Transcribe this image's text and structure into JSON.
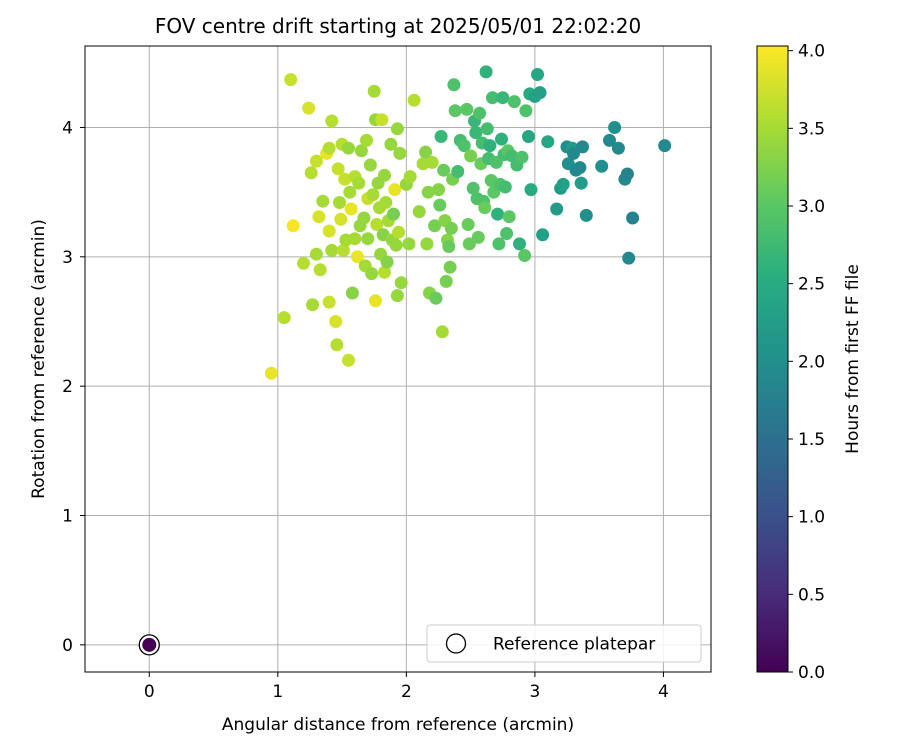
{
  "chart_data": {
    "type": "scatter",
    "title": "FOV centre drift starting at 2025/05/01 22:02:20",
    "xlabel": "Angular distance from reference (arcmin)",
    "ylabel": "Rotation from reference (arcmin)",
    "xlim": [
      -0.5,
      4.37
    ],
    "ylim": [
      -0.21,
      4.63
    ],
    "xticks": [
      0,
      1,
      2,
      3,
      4
    ],
    "yticks": [
      0,
      1,
      2,
      3,
      4
    ],
    "grid": true,
    "colormap": "viridis",
    "colorbar": {
      "label": "Hours from first FF file",
      "range": [
        0.0,
        4.03
      ],
      "ticks": [
        "0.0",
        "0.5",
        "1.0",
        "1.5",
        "2.0",
        "2.5",
        "3.0",
        "3.5",
        "4.0"
      ]
    },
    "legend": {
      "label": "Reference platepar",
      "position": "lower-right"
    },
    "reference_point": {
      "x": 0,
      "y": 0,
      "c": 0.0
    },
    "points": [
      [
        0.95,
        2.1,
        3.9
      ],
      [
        1.05,
        2.53,
        3.6
      ],
      [
        1.1,
        4.37,
        3.7
      ],
      [
        1.12,
        3.24,
        4.0
      ],
      [
        1.2,
        2.95,
        3.6
      ],
      [
        1.24,
        4.15,
        3.8
      ],
      [
        1.26,
        3.65,
        3.6
      ],
      [
        1.27,
        2.63,
        3.5
      ],
      [
        1.3,
        3.74,
        3.7
      ],
      [
        1.3,
        3.02,
        3.5
      ],
      [
        1.32,
        3.31,
        3.8
      ],
      [
        1.33,
        2.9,
        3.6
      ],
      [
        1.35,
        3.43,
        3.5
      ],
      [
        1.38,
        3.8,
        3.9
      ],
      [
        1.4,
        3.84,
        3.6
      ],
      [
        1.4,
        3.2,
        3.8
      ],
      [
        1.4,
        2.65,
        3.7
      ],
      [
        1.42,
        4.05,
        3.6
      ],
      [
        1.42,
        3.05,
        3.5
      ],
      [
        1.45,
        2.5,
        3.8
      ],
      [
        1.46,
        2.32,
        3.6
      ],
      [
        1.47,
        3.68,
        3.7
      ],
      [
        1.48,
        3.42,
        3.5
      ],
      [
        1.49,
        3.29,
        3.8
      ],
      [
        1.5,
        3.87,
        3.6
      ],
      [
        1.51,
        3.05,
        3.6
      ],
      [
        1.52,
        3.6,
        3.7
      ],
      [
        1.53,
        3.13,
        3.5
      ],
      [
        1.55,
        3.84,
        3.4
      ],
      [
        1.55,
        2.2,
        3.7
      ],
      [
        1.56,
        3.5,
        3.5
      ],
      [
        1.57,
        3.37,
        3.9
      ],
      [
        1.58,
        2.72,
        3.3
      ],
      [
        1.6,
        3.14,
        3.5
      ],
      [
        1.6,
        3.62,
        3.6
      ],
      [
        1.62,
        3.0,
        3.9
      ],
      [
        1.63,
        3.57,
        3.5
      ],
      [
        1.64,
        3.24,
        3.4
      ],
      [
        1.65,
        3.82,
        3.4
      ],
      [
        1.67,
        3.3,
        3.4
      ],
      [
        1.68,
        2.93,
        3.5
      ],
      [
        1.69,
        3.9,
        3.5
      ],
      [
        1.7,
        3.45,
        3.7
      ],
      [
        1.7,
        3.14,
        3.4
      ],
      [
        1.72,
        3.71,
        3.4
      ],
      [
        1.73,
        2.87,
        3.4
      ],
      [
        1.74,
        3.48,
        3.5
      ],
      [
        1.75,
        4.28,
        3.5
      ],
      [
        1.76,
        4.06,
        3.4
      ],
      [
        1.76,
        2.66,
        3.9
      ],
      [
        1.77,
        3.25,
        3.6
      ],
      [
        1.78,
        3.57,
        3.4
      ],
      [
        1.79,
        3.38,
        3.5
      ],
      [
        1.8,
        3.02,
        3.4
      ],
      [
        1.81,
        4.06,
        3.7
      ],
      [
        1.82,
        3.17,
        3.3
      ],
      [
        1.83,
        3.63,
        3.4
      ],
      [
        1.83,
        2.88,
        3.6
      ],
      [
        1.84,
        3.42,
        3.5
      ],
      [
        1.85,
        2.96,
        3.3
      ],
      [
        1.86,
        3.28,
        3.5
      ],
      [
        1.88,
        3.87,
        3.4
      ],
      [
        1.89,
        3.13,
        3.4
      ],
      [
        1.9,
        3.33,
        3.2
      ],
      [
        1.91,
        3.52,
        3.9
      ],
      [
        1.92,
        3.09,
        3.4
      ],
      [
        1.93,
        2.7,
        3.4
      ],
      [
        1.93,
        3.99,
        3.4
      ],
      [
        1.94,
        3.19,
        3.6
      ],
      [
        1.95,
        3.8,
        3.4
      ],
      [
        1.96,
        2.8,
        3.4
      ],
      [
        2.0,
        3.56,
        3.4
      ],
      [
        2.02,
        3.1,
        3.4
      ],
      [
        2.03,
        3.62,
        3.5
      ],
      [
        2.06,
        4.21,
        3.6
      ],
      [
        2.1,
        3.35,
        3.4
      ],
      [
        2.13,
        3.72,
        3.5
      ],
      [
        2.15,
        3.81,
        3.3
      ],
      [
        2.16,
        3.1,
        3.4
      ],
      [
        2.17,
        3.5,
        3.3
      ],
      [
        2.18,
        2.72,
        3.3
      ],
      [
        2.2,
        3.73,
        3.5
      ],
      [
        2.22,
        3.24,
        3.2
      ],
      [
        2.23,
        2.68,
        3.1
      ],
      [
        2.25,
        3.52,
        3.3
      ],
      [
        2.26,
        3.4,
        3.1
      ],
      [
        2.27,
        3.93,
        2.7
      ],
      [
        2.28,
        2.42,
        3.5
      ],
      [
        2.29,
        3.67,
        3.1
      ],
      [
        2.3,
        3.28,
        3.3
      ],
      [
        2.31,
        2.81,
        3.2
      ],
      [
        2.32,
        3.13,
        3.3
      ],
      [
        2.33,
        3.08,
        3.1
      ],
      [
        2.34,
        2.92,
        3.2
      ],
      [
        2.35,
        3.22,
        3.2
      ],
      [
        2.36,
        3.6,
        3.2
      ],
      [
        2.37,
        4.33,
        2.9
      ],
      [
        2.38,
        4.13,
        3.0
      ],
      [
        2.4,
        3.66,
        2.8
      ],
      [
        2.42,
        3.9,
        2.8
      ],
      [
        2.45,
        3.86,
        2.9
      ],
      [
        2.47,
        4.14,
        3.0
      ],
      [
        2.48,
        3.25,
        3.1
      ],
      [
        2.49,
        3.1,
        3.1
      ],
      [
        2.5,
        3.78,
        3.2
      ],
      [
        2.52,
        3.53,
        2.9
      ],
      [
        2.53,
        4.05,
        2.7
      ],
      [
        2.54,
        3.96,
        2.7
      ],
      [
        2.55,
        3.45,
        2.9
      ],
      [
        2.56,
        3.15,
        3.1
      ],
      [
        2.57,
        4.11,
        2.9
      ],
      [
        2.58,
        3.72,
        3.1
      ],
      [
        2.59,
        3.88,
        2.8
      ],
      [
        2.6,
        3.43,
        2.9
      ],
      [
        2.61,
        3.38,
        3.1
      ],
      [
        2.62,
        4.43,
        2.6
      ],
      [
        2.63,
        3.99,
        2.8
      ],
      [
        2.64,
        3.76,
        2.8
      ],
      [
        2.65,
        3.86,
        2.6
      ],
      [
        2.66,
        3.59,
        3.0
      ],
      [
        2.67,
        4.23,
        2.8
      ],
      [
        2.68,
        3.5,
        3.0
      ],
      [
        2.7,
        3.73,
        2.9
      ],
      [
        2.71,
        3.33,
        2.6
      ],
      [
        2.72,
        3.1,
        2.9
      ],
      [
        2.73,
        3.56,
        2.9
      ],
      [
        2.74,
        3.91,
        2.6
      ],
      [
        2.75,
        4.23,
        2.7
      ],
      [
        2.76,
        3.79,
        2.8
      ],
      [
        2.77,
        3.54,
        2.8
      ],
      [
        2.78,
        3.18,
        2.9
      ],
      [
        2.79,
        3.82,
        3.0
      ],
      [
        2.8,
        3.31,
        3.0
      ],
      [
        2.82,
        3.78,
        2.8
      ],
      [
        2.84,
        4.2,
        2.9
      ],
      [
        2.86,
        3.71,
        2.8
      ],
      [
        2.88,
        3.1,
        2.6
      ],
      [
        2.9,
        3.77,
        2.9
      ],
      [
        2.92,
        3.01,
        3.0
      ],
      [
        2.93,
        4.13,
        2.9
      ],
      [
        2.95,
        3.93,
        2.4
      ],
      [
        2.96,
        4.26,
        2.5
      ],
      [
        2.97,
        3.52,
        2.5
      ],
      [
        3.0,
        4.24,
        2.3
      ],
      [
        3.02,
        4.41,
        2.4
      ],
      [
        3.04,
        4.27,
        2.3
      ],
      [
        3.06,
        3.17,
        2.3
      ],
      [
        3.1,
        3.89,
        2.4
      ],
      [
        3.17,
        3.37,
        2.2
      ],
      [
        3.2,
        3.53,
        2.2
      ],
      [
        3.22,
        3.56,
        2.3
      ],
      [
        3.25,
        3.85,
        2.0
      ],
      [
        3.26,
        3.72,
        2.0
      ],
      [
        3.29,
        3.84,
        2.2
      ],
      [
        3.3,
        3.8,
        1.9
      ],
      [
        3.32,
        3.67,
        1.9
      ],
      [
        3.35,
        3.69,
        1.9
      ],
      [
        3.36,
        3.57,
        2.2
      ],
      [
        3.37,
        3.85,
        1.9
      ],
      [
        3.4,
        3.32,
        2.0
      ],
      [
        3.52,
        3.7,
        2.0
      ],
      [
        3.58,
        3.9,
        1.9
      ],
      [
        3.62,
        4.0,
        2.0
      ],
      [
        3.65,
        3.84,
        1.9
      ],
      [
        3.7,
        3.6,
        1.9
      ],
      [
        3.72,
        3.64,
        1.8
      ],
      [
        3.73,
        2.99,
        1.9
      ],
      [
        3.76,
        3.3,
        1.8
      ],
      [
        4.01,
        3.86,
        1.9
      ]
    ]
  }
}
